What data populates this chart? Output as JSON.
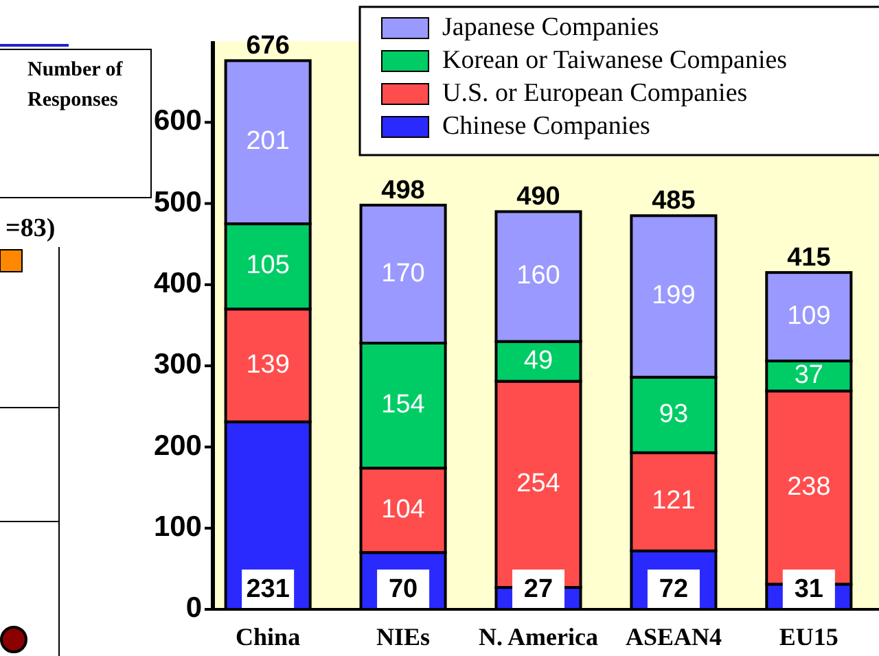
{
  "chart_data": {
    "type": "bar",
    "stacked": true,
    "categories": [
      "China",
      "NIEs",
      "N. America",
      "ASEAN4",
      "EU15"
    ],
    "series": [
      {
        "name": "Chinese Companies",
        "color": "#2a2aff",
        "values": [
          231,
          70,
          27,
          72,
          31
        ]
      },
      {
        "name": "U.S. or European Companies",
        "color": "#ff4d4d",
        "values": [
          139,
          104,
          254,
          121,
          238
        ]
      },
      {
        "name": "Korean or Taiwanese Companies",
        "color": "#00cc66",
        "values": [
          105,
          154,
          49,
          93,
          37
        ]
      },
      {
        "name": "Japanese Companies",
        "color": "#9999ff",
        "values": [
          201,
          170,
          160,
          199,
          109
        ]
      }
    ],
    "ylim": [
      0,
      700
    ],
    "yticks": [
      0,
      100,
      200,
      300,
      400,
      500,
      600
    ],
    "data_labels": true,
    "totals": [
      "676",
      "498",
      "490",
      "485",
      "415"
    ],
    "legend": "top right",
    "grid": false,
    "annotations": [
      "Number of Responses",
      "=83)"
    ]
  }
}
